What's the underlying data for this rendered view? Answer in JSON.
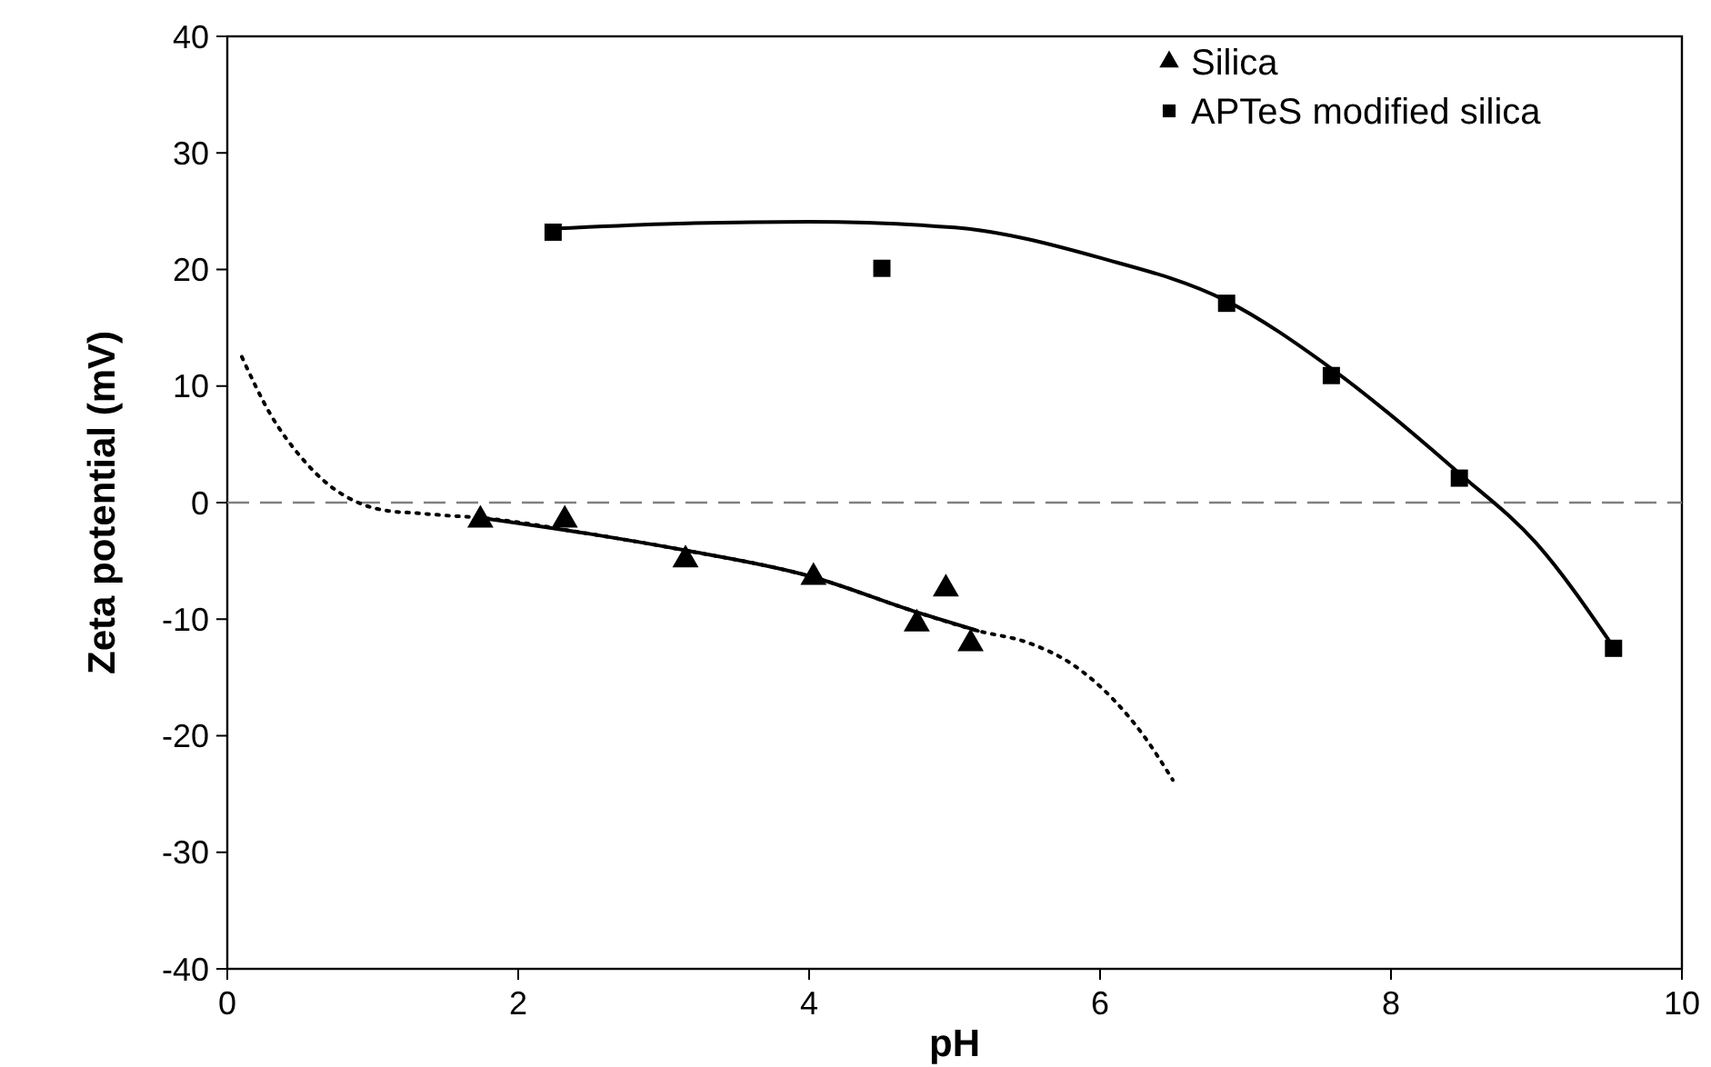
{
  "chart_data": {
    "type": "scatter",
    "xlabel": "pH",
    "ylabel": "Zeta potential (mV)",
    "xlim": [
      0,
      10
    ],
    "ylim": [
      -40,
      40
    ],
    "xticks": [
      0,
      2,
      4,
      6,
      8,
      10
    ],
    "yticks": [
      -40,
      -30,
      -20,
      -10,
      0,
      10,
      20,
      30,
      40
    ],
    "grid": false,
    "legend": "top right",
    "ref_lines": [
      {
        "axis": "y",
        "value": 0,
        "color": "#808080",
        "line_style": "dashed"
      }
    ],
    "series": [
      {
        "name": "Silica",
        "marker": "triangle",
        "color": "#000000",
        "x": [
          1.74,
          2.32,
          3.15,
          4.03,
          4.74,
          4.94,
          5.11
        ],
        "values": [
          -1.5,
          -1.5,
          -4.9,
          -6.4,
          -10.4,
          -7.4,
          -12.1
        ]
      },
      {
        "name": "APTeS modified silica",
        "marker": "square",
        "color": "#000000",
        "x": [
          2.24,
          4.5,
          6.87,
          7.59,
          8.47,
          9.53
        ],
        "values": [
          23.2,
          20.1,
          17.1,
          10.9,
          2.1,
          -12.5
        ]
      },
      {
        "type": "line",
        "line_style": "solid",
        "marker": "none",
        "color": "#000000",
        "x": [
          1.74,
          2.5,
          3.15,
          4,
          4.74,
          5.16
        ],
        "values": [
          -1.3,
          -2.7,
          -4.1,
          -6.3,
          -9.4,
          -11
        ]
      },
      {
        "type": "line",
        "line_style": "dotted",
        "marker": "none",
        "color": "#000000",
        "x": [
          0.1,
          0.3,
          0.5,
          0.7,
          0.9,
          1.1,
          1.3,
          1.5,
          1.74,
          2.5,
          3.15,
          4,
          4.74,
          5.16,
          5.5,
          5.8,
          6.1,
          6.3,
          6.5
        ],
        "values": [
          12.5,
          7.5,
          4,
          1.5,
          0,
          -0.7,
          -0.9,
          -1.1,
          -1.3,
          -2.7,
          -4.1,
          -6.3,
          -9.4,
          -11,
          -12,
          -13.8,
          -17,
          -20,
          -23.8
        ]
      },
      {
        "type": "line",
        "line_style": "solid",
        "marker": "none",
        "color": "#000000",
        "x": [
          2.24,
          3,
          4,
          5,
          6,
          6.87,
          7.59,
          8.47,
          9,
          9.53
        ],
        "values": [
          23.5,
          23.9,
          24.1,
          23.6,
          21,
          17.3,
          11.5,
          2.5,
          -3.5,
          -12.4
        ]
      }
    ]
  }
}
